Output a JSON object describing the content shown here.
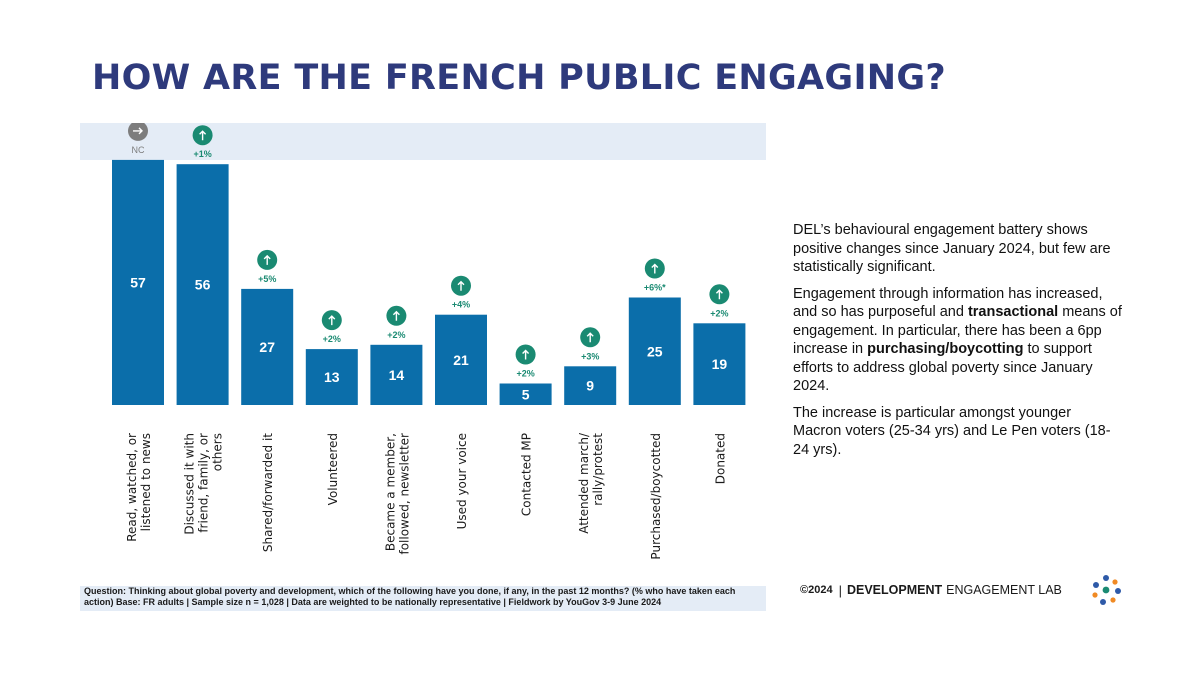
{
  "title": "HOW ARE THE FRENCH PUBLIC ENGAGING?",
  "colors": {
    "bar": "#0b6eaa",
    "change_up": "#1a8a72",
    "change_neutral": "#7d7d7d",
    "panel_bg": "#e4ecf6",
    "title": "#2e3a7c"
  },
  "chart_data": {
    "type": "bar",
    "title": "",
    "xlabel": "",
    "ylabel": "",
    "ylim": [
      0,
      60
    ],
    "grid": false,
    "categories": [
      "Read, watched, or listened to news",
      "Discussed it with friend, family, or others",
      "Shared/forwarded it",
      "Volunteered",
      "Became a member, followed, newsletter",
      "Used your voice",
      "Contacted MP",
      "Attended march/ rally/protest",
      "Purchased/boycotted",
      "Donated"
    ],
    "category_label_lines": [
      [
        "Read, watched, or",
        "listened to news"
      ],
      [
        "Discussed it with",
        "friend, family, or",
        "others"
      ],
      [
        "Shared/forwarded it"
      ],
      [
        "Volunteered"
      ],
      [
        "Became a member,",
        "followed, newsletter"
      ],
      [
        "Used your voice"
      ],
      [
        "Contacted MP"
      ],
      [
        "Attended march/",
        "rally/protest"
      ],
      [
        "Purchased/boycotted"
      ],
      [
        "Donated"
      ]
    ],
    "values": [
      57,
      56,
      27,
      13,
      14,
      21,
      5,
      9,
      25,
      19
    ],
    "changes": [
      "NC",
      "+1%",
      "+5%",
      "+2%",
      "+2%",
      "+4%",
      "+2%",
      "+3%",
      "+6%*",
      "+2%"
    ],
    "change_icons": [
      "arrow-right-icon",
      "arrow-up-icon",
      "arrow-up-icon",
      "arrow-up-icon",
      "arrow-up-icon",
      "arrow-up-icon",
      "arrow-up-icon",
      "arrow-up-icon",
      "arrow-up-icon",
      "arrow-up-icon"
    ],
    "direction": [
      "neutral",
      "up",
      "up",
      "up",
      "up",
      "up",
      "up",
      "up",
      "up",
      "up"
    ]
  },
  "footnote": "Question: Thinking about global poverty and development, which of the following have you done, if any, in the past 12 months? (% who have taken each action) Base: FR adults | Sample size n = 1,028 | Data are weighted to be nationally representative | Fieldwork by YouGov 3-9 June 2024",
  "side_text": {
    "p1": "DEL’s behavioural engagement battery shows positive changes since January 2024, but few  are statistically significant.",
    "p2_a": "Engagement through information has increased, and so has purposeful and ",
    "p2_b": "transactional",
    "p2_c": " means of engagement. In particular, there has been a 6pp increase in ",
    "p2_d": "purchasing/boycotting",
    "p2_e": " to support efforts to address global poverty since January 2024.",
    "p3": "The increase is particular amongst younger Macron voters (25-34 yrs) and Le Pen voters (18-24 yrs)."
  },
  "footer": {
    "copyright": "©2024",
    "separator": "|",
    "brand_bold": "DEVELOPMENT",
    "brand_rest": "ENGAGEMENT LAB",
    "logo_icon": "del-logo-icon"
  }
}
